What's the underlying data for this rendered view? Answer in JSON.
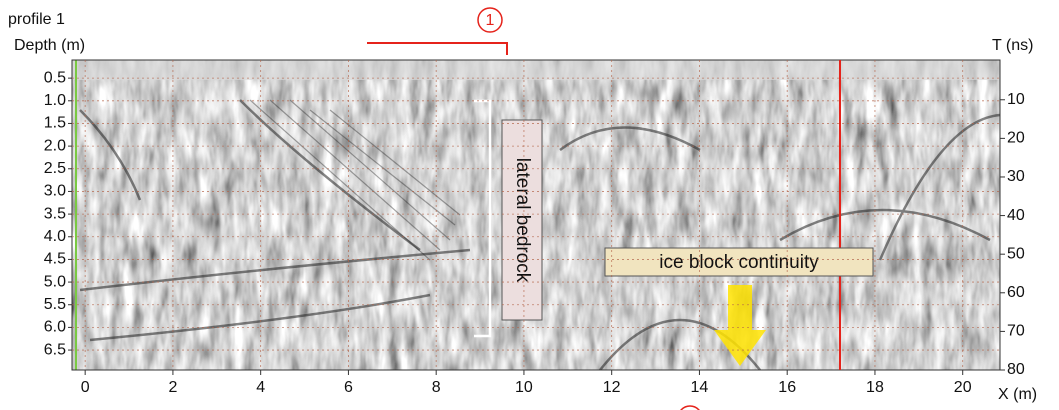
{
  "chart_data": {
    "type": "radargram",
    "title": "profile 1",
    "ylabel": "Depth (m)",
    "y2label": "T (ns)",
    "xlabel": "X (m)",
    "xlim": [
      -0.3,
      20.85
    ],
    "xticks": [
      0,
      2,
      4,
      6,
      8,
      10,
      12,
      14,
      16,
      18,
      20
    ],
    "ylim": [
      0.1,
      6.94
    ],
    "yticks": [
      0.5,
      {
        "value": 1,
        "label": "1.0"
      },
      1.5,
      {
        "value": 2,
        "label": "2.0"
      },
      2.5,
      {
        "value": 3,
        "label": "3.0"
      },
      3.5,
      {
        "value": 4,
        "label": "4.0"
      },
      4.5,
      {
        "value": 5,
        "label": "5.0"
      },
      5.5,
      {
        "value": 6,
        "label": "6.0"
      },
      6.5
    ],
    "y2lim": [
      -0.3,
      80
    ],
    "y2ticks": [
      10,
      20,
      30,
      40,
      50,
      60,
      70,
      80
    ],
    "inverted_y": true,
    "grid": true,
    "annotations": {
      "marker": "1",
      "bedrock": "lateral bedrock",
      "ice": "ice block continuity"
    }
  }
}
